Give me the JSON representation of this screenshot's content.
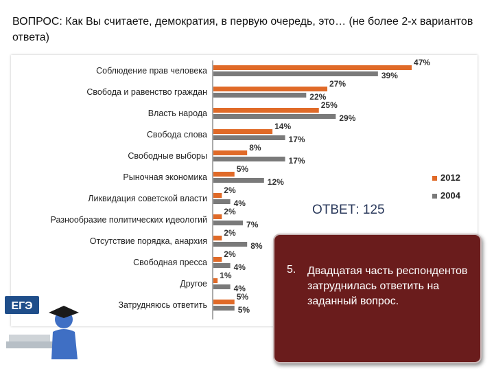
{
  "question": "ВОПРОС: Как Вы считаете, демократия, в первую очередь, это… (не более 2-х вариантов ответа)",
  "answer_header": "ОТВЕТ: 125",
  "note": {
    "number": "5.",
    "text": "Двадцатая часть респондентов затруднилась ответить на заданный вопрос."
  },
  "logo_text": "ЕГЭ",
  "colors": {
    "series_2012": "#e06a28",
    "series_2004": "#7a7a7a",
    "note_bg": "#6a1c1c"
  },
  "chart_data": {
    "type": "bar",
    "orientation": "horizontal",
    "categories": [
      "Соблюдение прав человека",
      "Свобода и равенство граждан",
      "Власть народа",
      "Свобода слова",
      "Свободные выборы",
      "Рыночная экономика",
      "Ликвидация советской власти",
      "Разнообразие политических идеологий",
      "Отсутствие порядка, анархия",
      "Свободная пресса",
      "Другое",
      "Затрудняюсь ответить"
    ],
    "series": [
      {
        "name": "2012",
        "values": [
          47,
          27,
          25,
          14,
          8,
          5,
          2,
          2,
          2,
          2,
          1,
          5
        ]
      },
      {
        "name": "2004",
        "values": [
          39,
          22,
          29,
          17,
          17,
          12,
          4,
          7,
          8,
          4,
          4,
          5
        ]
      }
    ],
    "value_suffix": "%",
    "legend_position": "right",
    "grid": false
  }
}
